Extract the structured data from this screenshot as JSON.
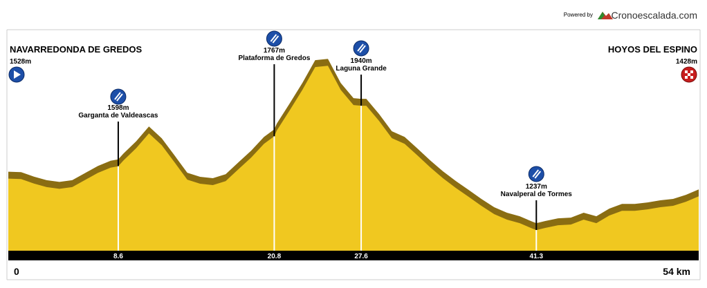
{
  "powered_by": "Powered by",
  "brand": "Cronoescalada.com",
  "chart_data": {
    "type": "area",
    "start": {
      "name": "NAVARREDONDA DE GREDOS",
      "elevation": {
        "value": 1528,
        "label": "1528m"
      }
    },
    "finish": {
      "name": "HOYOS DEL ESPINO",
      "elevation": {
        "value": 1428,
        "label": "1428m"
      }
    },
    "waypoints": [
      {
        "name": "Garganta de Valdeascas",
        "elevation": {
          "value": 1598,
          "label": "1598m"
        }
      },
      {
        "name": "Plataforma de Gredos",
        "elevation": {
          "value": 1767,
          "label": "1767m"
        }
      },
      {
        "name": "Laguna Grande",
        "elevation": {
          "value": 1940,
          "label": "1940m"
        }
      },
      {
        "name": "Navalperal de Tormes",
        "elevation": {
          "value": 1237,
          "label": "1237m"
        }
      }
    ],
    "x": [
      0,
      1,
      2,
      3,
      4,
      5,
      6,
      7,
      8,
      8.6,
      9,
      10,
      11,
      12,
      13,
      14,
      15,
      16,
      17,
      18,
      19,
      20,
      20.8,
      21,
      22,
      23,
      24,
      25,
      26,
      27,
      27.6,
      28,
      29,
      30,
      31,
      32,
      33,
      34,
      35,
      36,
      37,
      38,
      39,
      40,
      41,
      41.3,
      42,
      43,
      44,
      45,
      46,
      47,
      48,
      49,
      50,
      51,
      52,
      53,
      54
    ],
    "series": [
      {
        "color": "#f0c820",
        "values": [
          1528,
          1525,
          1500,
          1480,
          1470,
          1480,
          1520,
          1560,
          1590,
          1598,
          1630,
          1700,
          1784,
          1717,
          1620,
          1522,
          1499,
          1491,
          1514,
          1581,
          1647,
          1725,
          1767,
          1800,
          1913,
          2030,
          2159,
          2166,
          2030,
          1944,
          1940,
          1940,
          1854,
          1757,
          1725,
          1659,
          1592,
          1530,
          1475,
          1425,
          1374,
          1327,
          1296,
          1276,
          1245,
          1237,
          1249,
          1264,
          1268,
          1296,
          1276,
          1319,
          1346,
          1346,
          1354,
          1366,
          1374,
          1397,
          1428
        ]
      }
    ],
    "xlim": [
      0,
      54
    ],
    "ylim": [
      1120,
      2382
    ],
    "xticks": [
      {
        "value": 0,
        "label": "0"
      },
      8.6,
      20.8,
      27.6,
      41.3,
      {
        "value": 54,
        "label": "54 km"
      }
    ]
  }
}
